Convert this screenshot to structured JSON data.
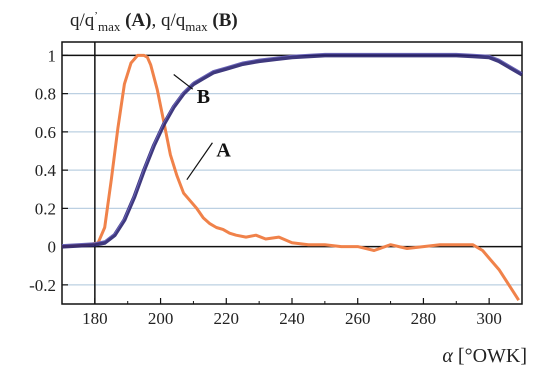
{
  "chart_data": {
    "type": "line",
    "title_parts": {
      "q1": "q/q",
      "q1_sup": "’",
      "q1_sub": "max",
      "label_a": " (A)",
      "sep": ", q/q",
      "q2_sub": "max",
      "label_b": " (B)"
    },
    "xlabel_symbol": "α",
    "xlabel_unit": " [°OWK]",
    "xlim": [
      170,
      310
    ],
    "ylim": [
      -0.3,
      1.07
    ],
    "x_ticks": [
      180,
      200,
      220,
      240,
      260,
      280,
      300
    ],
    "y_ticks": [
      1,
      0.8,
      0.6,
      0.4,
      0.2,
      0,
      -0.2
    ],
    "y_tick_labels": [
      "1",
      "0.8",
      "0.6",
      "0.4",
      "0.2",
      "0",
      "-0.2"
    ],
    "grid": true,
    "colors": {
      "A": "#f0824a",
      "B": "#2a2370",
      "axis": "#111111",
      "grid": "#bcd0e2"
    },
    "series": [
      {
        "name": "A",
        "x": [
          170,
          178,
          181,
          183,
          185,
          187,
          189,
          191,
          193,
          195,
          196,
          197,
          199,
          201,
          203,
          205,
          207,
          209,
          211,
          213,
          215,
          217,
          219,
          221,
          223,
          226,
          229,
          232,
          236,
          240,
          245,
          250,
          255,
          260,
          265,
          270,
          275,
          280,
          285,
          290,
          295,
          298,
          300,
          303,
          306,
          309
        ],
        "y": [
          0.0,
          0.01,
          0.02,
          0.1,
          0.35,
          0.62,
          0.85,
          0.96,
          1.0,
          1.0,
          0.99,
          0.95,
          0.82,
          0.65,
          0.48,
          0.37,
          0.28,
          0.24,
          0.2,
          0.15,
          0.12,
          0.1,
          0.09,
          0.07,
          0.06,
          0.05,
          0.06,
          0.04,
          0.05,
          0.02,
          0.01,
          0.01,
          0.0,
          0.0,
          -0.02,
          0.01,
          -0.01,
          0.0,
          0.01,
          0.01,
          0.01,
          -0.02,
          -0.06,
          -0.12,
          -0.2,
          -0.28
        ]
      },
      {
        "name": "B",
        "x": [
          170,
          180,
          183,
          186,
          189,
          192,
          195,
          198,
          201,
          204,
          207,
          210,
          213,
          216,
          220,
          225,
          230,
          235,
          240,
          250,
          260,
          270,
          280,
          290,
          295,
          300,
          303,
          306,
          310
        ],
        "y": [
          0.0,
          0.01,
          0.02,
          0.06,
          0.14,
          0.26,
          0.4,
          0.53,
          0.64,
          0.73,
          0.8,
          0.85,
          0.88,
          0.91,
          0.93,
          0.955,
          0.97,
          0.98,
          0.99,
          1.0,
          1.0,
          1.0,
          1.0,
          1.0,
          0.995,
          0.99,
          0.97,
          0.94,
          0.9
        ]
      }
    ],
    "annotations": [
      {
        "text": "B",
        "x": 211,
        "y": 0.75,
        "pointer_to_x": 204,
        "pointer_to_y": 0.9
      },
      {
        "text": "A",
        "x": 217,
        "y": 0.47,
        "pointer_to_x": 208,
        "pointer_to_y": 0.35
      }
    ]
  }
}
